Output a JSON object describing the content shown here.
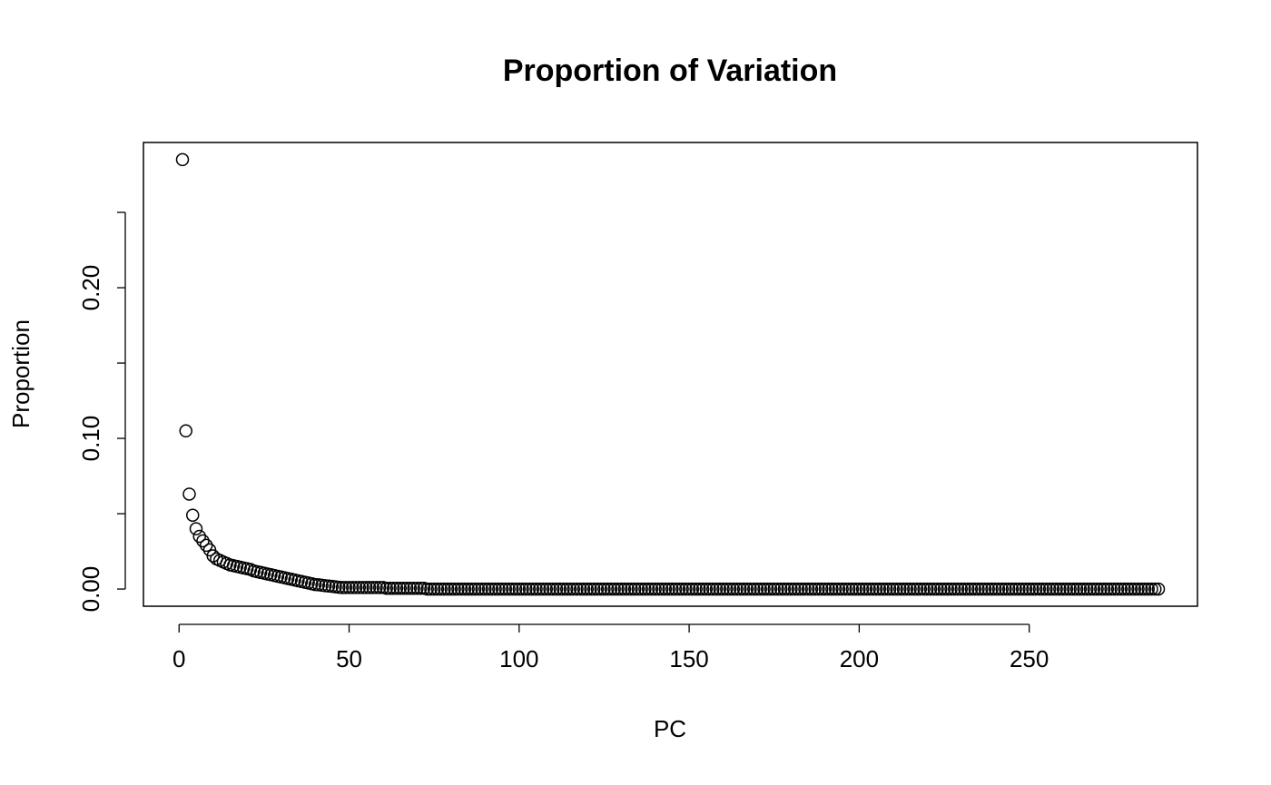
{
  "chart_data": {
    "type": "scatter",
    "title": "Proportion of Variation",
    "x_label": "PC",
    "y_label": "Proportion",
    "x": [
      1,
      2,
      3,
      4,
      5,
      6,
      7,
      8,
      9,
      10,
      11,
      12,
      13,
      14,
      15,
      16,
      17,
      18,
      19,
      20,
      21,
      22,
      23,
      24,
      25,
      26,
      27,
      28,
      29,
      30,
      31,
      32,
      33,
      34,
      35,
      36,
      37,
      38,
      39,
      40,
      41,
      42,
      43,
      44,
      45,
      46,
      47,
      48,
      49,
      50,
      51,
      52,
      53,
      54,
      55,
      56,
      57,
      58,
      59,
      60,
      61,
      62,
      63,
      64,
      65,
      66,
      67,
      68,
      69,
      70,
      71,
      72,
      73,
      74,
      75,
      76,
      77,
      78,
      79,
      80,
      81,
      82,
      83,
      84,
      85,
      86,
      87,
      88,
      89,
      90,
      91,
      92,
      93,
      94,
      95,
      96,
      97,
      98,
      99,
      100,
      101,
      102,
      103,
      104,
      105,
      106,
      107,
      108,
      109,
      110,
      111,
      112,
      113,
      114,
      115,
      116,
      117,
      118,
      119,
      120,
      121,
      122,
      123,
      124,
      125,
      126,
      127,
      128,
      129,
      130,
      131,
      132,
      133,
      134,
      135,
      136,
      137,
      138,
      139,
      140,
      141,
      142,
      143,
      144,
      145,
      146,
      147,
      148,
      149,
      150,
      151,
      152,
      153,
      154,
      155,
      156,
      157,
      158,
      159,
      160,
      161,
      162,
      163,
      164,
      165,
      166,
      167,
      168,
      169,
      170,
      171,
      172,
      173,
      174,
      175,
      176,
      177,
      178,
      179,
      180,
      181,
      182,
      183,
      184,
      185,
      186,
      187,
      188,
      189,
      190,
      191,
      192,
      193,
      194,
      195,
      196,
      197,
      198,
      199,
      200,
      201,
      202,
      203,
      204,
      205,
      206,
      207,
      208,
      209,
      210,
      211,
      212,
      213,
      214,
      215,
      216,
      217,
      218,
      219,
      220,
      221,
      222,
      223,
      224,
      225,
      226,
      227,
      228,
      229,
      230,
      231,
      232,
      233,
      234,
      235,
      236,
      237,
      238,
      239,
      240,
      241,
      242,
      243,
      244,
      245,
      246,
      247,
      248,
      249,
      250,
      251,
      252,
      253,
      254,
      255,
      256,
      257,
      258,
      259,
      260,
      261,
      262,
      263,
      264,
      265,
      266,
      267,
      268,
      269,
      270,
      271,
      272,
      273,
      274,
      275,
      276,
      277,
      278,
      279,
      280,
      281,
      282,
      283,
      284,
      285,
      286,
      287,
      288
    ],
    "values": [
      0.285,
      0.105,
      0.063,
      0.049,
      0.04,
      0.035,
      0.032,
      0.029,
      0.026,
      0.022,
      0.02,
      0.019,
      0.018,
      0.017,
      0.016,
      0.0155,
      0.015,
      0.0145,
      0.014,
      0.0135,
      0.013,
      0.012,
      0.0115,
      0.011,
      0.0105,
      0.01,
      0.0095,
      0.009,
      0.0085,
      0.008,
      0.0075,
      0.007,
      0.0065,
      0.006,
      0.0055,
      0.005,
      0.0045,
      0.004,
      0.0035,
      0.003,
      0.0028,
      0.0025,
      0.0022,
      0.002,
      0.0018,
      0.0015,
      0.0012,
      0.001,
      0.001,
      0.001,
      0.001,
      0.001,
      0.001,
      0.001,
      0.001,
      0.001,
      0.001,
      0.001,
      0.001,
      0.001,
      0.0005,
      0.0005,
      0.0005,
      0.0005,
      0.0005,
      0.0005,
      0.0005,
      0.0005,
      0.0005,
      0.0005,
      0.0005,
      0.0005,
      0,
      0,
      0,
      0,
      0,
      0,
      0,
      0,
      0,
      0,
      0,
      0,
      0,
      0,
      0,
      0,
      0,
      0,
      0,
      0,
      0,
      0,
      0,
      0,
      0,
      0,
      0,
      0,
      0,
      0,
      0,
      0,
      0,
      0,
      0,
      0,
      0,
      0,
      0,
      0,
      0,
      0,
      0,
      0,
      0,
      0,
      0,
      0,
      0,
      0,
      0,
      0,
      0,
      0,
      0,
      0,
      0,
      0,
      0,
      0,
      0,
      0,
      0,
      0,
      0,
      0,
      0,
      0,
      0,
      0,
      0,
      0,
      0,
      0,
      0,
      0,
      0,
      0,
      0,
      0,
      0,
      0,
      0,
      0,
      0,
      0,
      0,
      0,
      0,
      0,
      0,
      0,
      0,
      0,
      0,
      0,
      0,
      0,
      0,
      0,
      0,
      0,
      0,
      0,
      0,
      0,
      0,
      0,
      0,
      0,
      0,
      0,
      0,
      0,
      0,
      0,
      0,
      0,
      0,
      0,
      0,
      0,
      0,
      0,
      0,
      0,
      0,
      0,
      0,
      0,
      0,
      0,
      0,
      0,
      0,
      0,
      0,
      0,
      0,
      0,
      0,
      0,
      0,
      0,
      0,
      0,
      0,
      0,
      0,
      0,
      0,
      0,
      0,
      0,
      0,
      0,
      0,
      0,
      0,
      0,
      0,
      0,
      0,
      0,
      0,
      0,
      0,
      0,
      0,
      0,
      0,
      0,
      0,
      0,
      0,
      0,
      0,
      0,
      0,
      0,
      0,
      0,
      0,
      0,
      0,
      0,
      0,
      0,
      0,
      0,
      0,
      0,
      0,
      0,
      0,
      0,
      0,
      0,
      0,
      0,
      0,
      0,
      0,
      0,
      0,
      0,
      0,
      0,
      0,
      0,
      0,
      0,
      0,
      0,
      0,
      0
    ],
    "color": "#000000",
    "xlim": [
      -10.48,
      299.48
    ],
    "xticks": [
      0,
      50,
      100,
      150,
      200,
      250
    ],
    "ylim": [
      -0.0114,
      0.2964
    ],
    "yticks": [
      {
        "value": 0,
        "label": "0.00"
      },
      {
        "value": 0.05,
        "label": null
      },
      {
        "value": 0.1,
        "label": "0.10"
      },
      {
        "value": 0.15,
        "label": null
      },
      {
        "value": 0.2,
        "label": "0.20"
      },
      {
        "value": 0.25,
        "label": null
      }
    ],
    "grid": false
  }
}
